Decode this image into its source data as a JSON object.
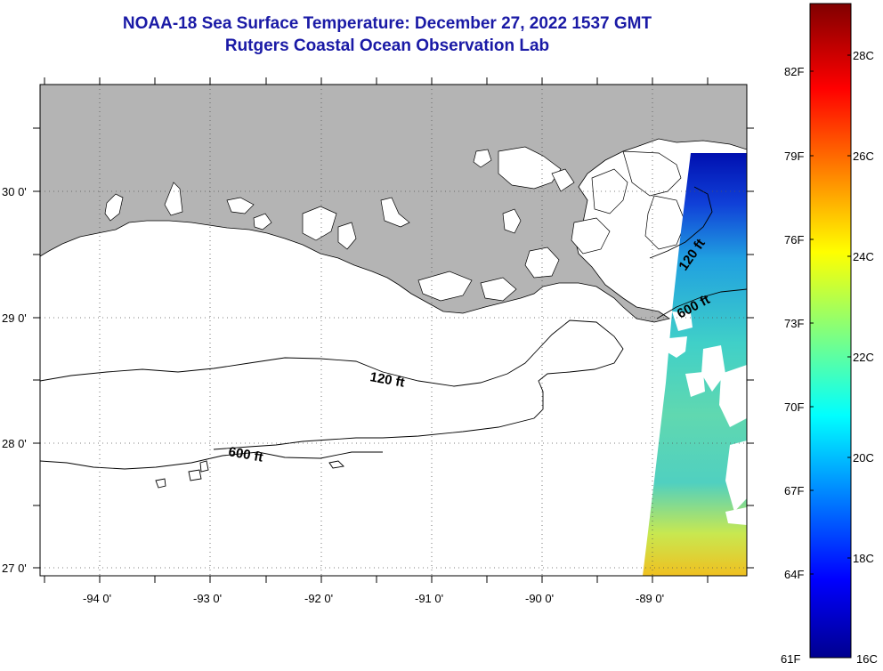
{
  "title": {
    "line1": "NOAA-18 Sea Surface Temperature:  December 27, 2022 1537 GMT",
    "line2": "Rutgers Coastal Ocean Observation Lab"
  },
  "map": {
    "lat_labels": [
      "30 0'",
      "29 0'",
      "28 0'",
      "27 0'"
    ],
    "lon_labels": [
      "-94 0'",
      "-93 0'",
      "-92 0'",
      "-91 0'",
      "-90 0'",
      "-89 0'"
    ],
    "contour_labels": [
      "120 ft",
      "600 ft",
      "600 ft",
      "120 ft"
    ],
    "land_color": "#b4b4b4",
    "gridline_style": "dotted"
  },
  "colorbar": {
    "fahrenheit_labels": [
      "82F",
      "79F",
      "76F",
      "73F",
      "70F",
      "67F",
      "64F",
      "61F"
    ],
    "celsius_labels": [
      "28C",
      "26C",
      "24C",
      "22C",
      "20C",
      "18C",
      "16C"
    ],
    "range_celsius": [
      16,
      29.4
    ],
    "colormap": "jet"
  }
}
